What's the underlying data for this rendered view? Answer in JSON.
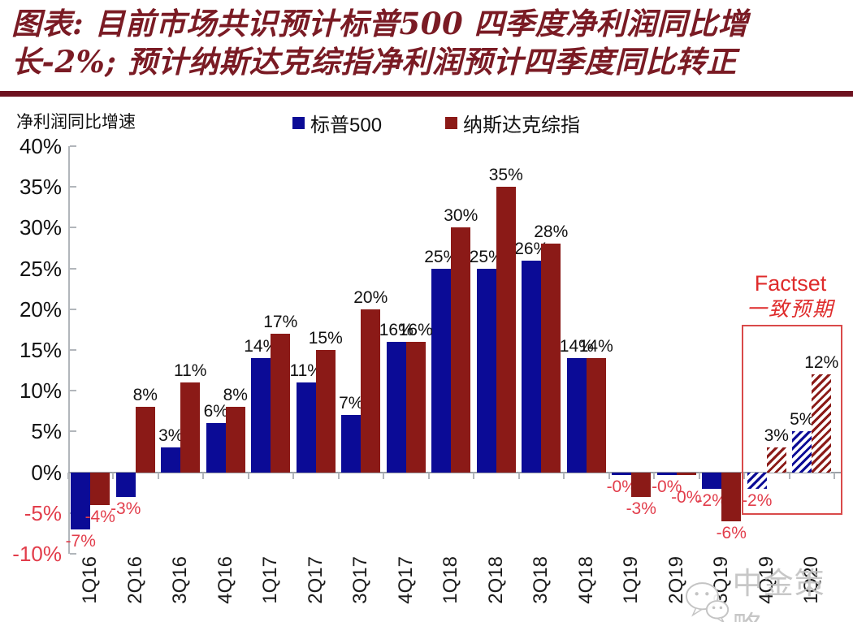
{
  "title": {
    "line1": "图表: 目前市场共识预计标普500 四季度净利润同比增",
    "line2": "长-2%; 预计纳斯达克综指净利润预计四季度同比转正"
  },
  "axis_title": "净利润同比增速",
  "legend": {
    "items": [
      {
        "label": "标普500",
        "color": "#0b0b96"
      },
      {
        "label": "纳斯达克综指",
        "color": "#8b1a17"
      }
    ]
  },
  "annotation": {
    "line1": "Factset",
    "line2": "一致预期"
  },
  "watermark": {
    "text": "中金策略"
  },
  "colors": {
    "title": "#7a1b24",
    "title_rule": "#6e1220",
    "negative_labels": "#e23d4b",
    "annotation": "#df2b2b",
    "box_border": "#d94a4a",
    "watermark": "#c0c0c0",
    "sp500_bar": "#0b0b96",
    "nasdaq_bar": "#8b1a17"
  },
  "chart_data": {
    "type": "bar",
    "title": "净利润同比增速",
    "categories": [
      "1Q16",
      "2Q16",
      "3Q16",
      "4Q16",
      "1Q17",
      "2Q17",
      "3Q17",
      "4Q17",
      "1Q18",
      "2Q18",
      "3Q18",
      "4Q18",
      "1Q19",
      "2Q19",
      "3Q19",
      "4Q19",
      "1Q20"
    ],
    "series": [
      {
        "name": "标普500",
        "color": "#0b0b96",
        "values": [
          -7,
          -3,
          3,
          6,
          14,
          11,
          7,
          16,
          25,
          25,
          26,
          14,
          -0.3,
          -0.3,
          -2,
          -2,
          5
        ],
        "labels": [
          "-7%",
          "-3%",
          "3%",
          "6%",
          "14%",
          "11%",
          "7%",
          "16%",
          "25%",
          "25%",
          "26%",
          "14%",
          "-0%",
          "-0%",
          "-2%",
          "-2%",
          "5%"
        ]
      },
      {
        "name": "纳斯达克综指",
        "color": "#8b1a17",
        "values": [
          -4,
          8,
          11,
          8,
          17,
          15,
          20,
          16,
          30,
          35,
          28,
          14,
          -3,
          -0.3,
          -6,
          3,
          12
        ],
        "labels": [
          "-4%",
          "8%",
          "11%",
          "8%",
          "17%",
          "15%",
          "20%",
          "16%",
          "30%",
          "35%",
          "28%",
          "14%",
          "-3%",
          "-0%",
          "-6%",
          "3%",
          "12%"
        ],
        "label_dy": {
          "13": 13
        }
      }
    ],
    "estimate_start_index": 15,
    "estimate_note": "Factset 一致预期",
    "ylabel": "净利润同比增速",
    "ylim": [
      -10,
      40
    ],
    "ytick_step": 5,
    "yticks": [
      "40%",
      "35%",
      "30%",
      "25%",
      "20%",
      "15%",
      "10%",
      "5%",
      "0%",
      "-5%",
      "-10%"
    ],
    "grid": false,
    "legend_position": "top"
  }
}
